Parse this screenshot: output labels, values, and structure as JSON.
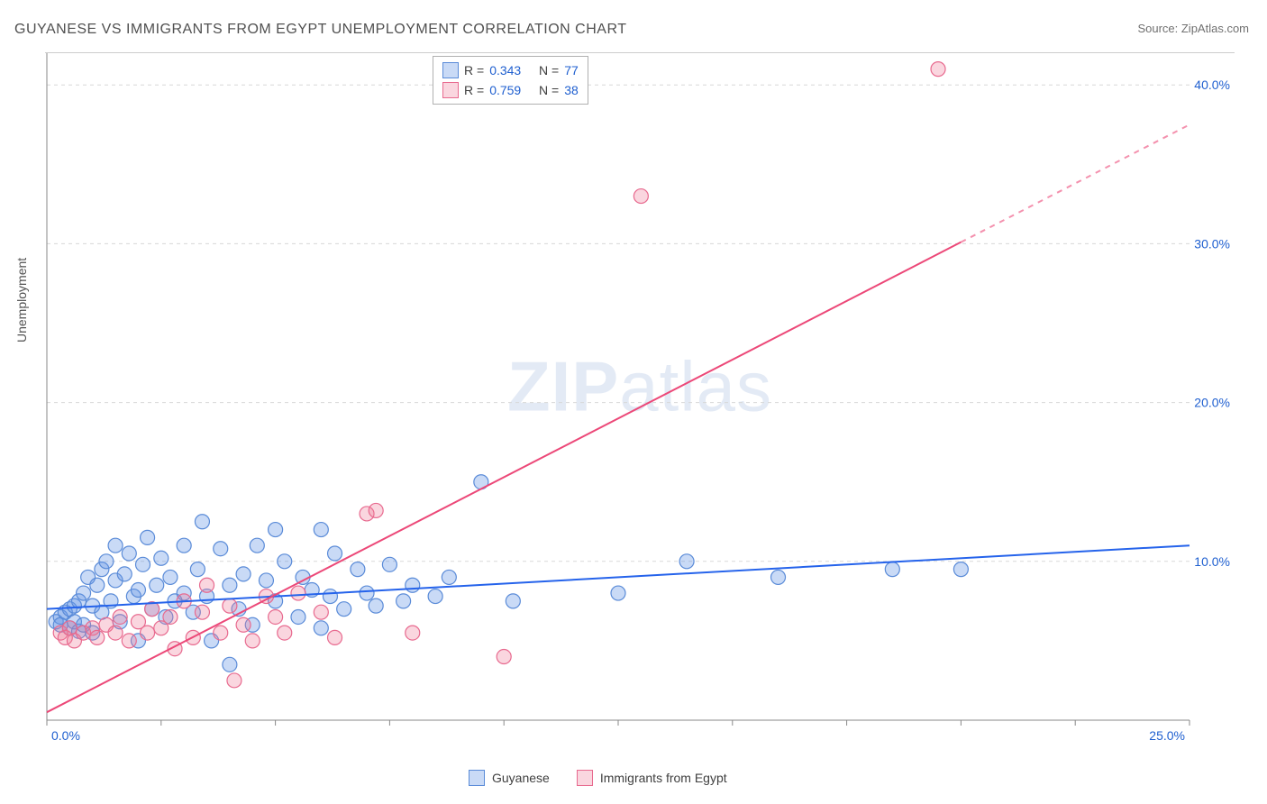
{
  "title": "GUYANESE VS IMMIGRANTS FROM EGYPT UNEMPLOYMENT CORRELATION CHART",
  "source": "Source: ZipAtlas.com",
  "y_axis_label": "Unemployment",
  "watermark_a": "ZIP",
  "watermark_b": "atlas",
  "chart": {
    "type": "scatter",
    "xlim": [
      0,
      25
    ],
    "ylim": [
      0,
      42
    ],
    "x_ticks": [
      0,
      25
    ],
    "x_tick_labels": [
      "0.0%",
      "25.0%"
    ],
    "y_ticks": [
      10,
      20,
      30,
      40
    ],
    "y_tick_labels": [
      "10.0%",
      "20.0%",
      "30.0%",
      "40.0%"
    ],
    "grid_color": "#d8d8d8",
    "axis_line_color": "#888888",
    "tick_label_color": "#2060d0",
    "background_color": "#ffffff",
    "x_minor_tick_step": 2.5,
    "series": [
      {
        "name": "Guyanese",
        "label": "Guyanese",
        "color_fill": "rgba(100,150,230,0.35)",
        "color_stroke": "#5a8bd8",
        "marker_radius": 8,
        "R": 0.343,
        "N": 77,
        "trend": {
          "x1": 0,
          "y1": 7.0,
          "x2": 25,
          "y2": 11.0,
          "color": "#2563eb",
          "width": 2
        },
        "points": [
          [
            0.2,
            6.2
          ],
          [
            0.3,
            6.5
          ],
          [
            0.3,
            6.0
          ],
          [
            0.4,
            6.8
          ],
          [
            0.5,
            7.0
          ],
          [
            0.5,
            5.8
          ],
          [
            0.6,
            6.2
          ],
          [
            0.6,
            7.2
          ],
          [
            0.7,
            5.6
          ],
          [
            0.7,
            7.5
          ],
          [
            0.8,
            6.0
          ],
          [
            0.8,
            8.0
          ],
          [
            0.9,
            9.0
          ],
          [
            1.0,
            7.2
          ],
          [
            1.0,
            5.5
          ],
          [
            1.1,
            8.5
          ],
          [
            1.2,
            9.5
          ],
          [
            1.2,
            6.8
          ],
          [
            1.3,
            10.0
          ],
          [
            1.4,
            7.5
          ],
          [
            1.5,
            8.8
          ],
          [
            1.5,
            11.0
          ],
          [
            1.6,
            6.2
          ],
          [
            1.7,
            9.2
          ],
          [
            1.8,
            10.5
          ],
          [
            1.9,
            7.8
          ],
          [
            2.0,
            8.2
          ],
          [
            2.0,
            5.0
          ],
          [
            2.1,
            9.8
          ],
          [
            2.2,
            11.5
          ],
          [
            2.3,
            7.0
          ],
          [
            2.4,
            8.5
          ],
          [
            2.5,
            10.2
          ],
          [
            2.6,
            6.5
          ],
          [
            2.7,
            9.0
          ],
          [
            2.8,
            7.5
          ],
          [
            3.0,
            8.0
          ],
          [
            3.0,
            11.0
          ],
          [
            3.2,
            6.8
          ],
          [
            3.3,
            9.5
          ],
          [
            3.4,
            12.5
          ],
          [
            3.5,
            7.8
          ],
          [
            3.6,
            5.0
          ],
          [
            3.8,
            10.8
          ],
          [
            4.0,
            8.5
          ],
          [
            4.2,
            7.0
          ],
          [
            4.3,
            9.2
          ],
          [
            4.5,
            6.0
          ],
          [
            4.6,
            11.0
          ],
          [
            4.8,
            8.8
          ],
          [
            5.0,
            7.5
          ],
          [
            5.2,
            10.0
          ],
          [
            5.5,
            6.5
          ],
          [
            5.6,
            9.0
          ],
          [
            5.8,
            8.2
          ],
          [
            6.0,
            12.0
          ],
          [
            6.2,
            7.8
          ],
          [
            6.3,
            10.5
          ],
          [
            6.5,
            7.0
          ],
          [
            6.8,
            9.5
          ],
          [
            7.0,
            8.0
          ],
          [
            7.2,
            7.2
          ],
          [
            7.5,
            9.8
          ],
          [
            7.8,
            7.5
          ],
          [
            8.0,
            8.5
          ],
          [
            8.5,
            7.8
          ],
          [
            8.8,
            9.0
          ],
          [
            9.5,
            15.0
          ],
          [
            10.2,
            7.5
          ],
          [
            12.5,
            8.0
          ],
          [
            14.0,
            10.0
          ],
          [
            16.0,
            9.0
          ],
          [
            18.5,
            9.5
          ],
          [
            20.0,
            9.5
          ],
          [
            5.0,
            12.0
          ],
          [
            4.0,
            3.5
          ],
          [
            6.0,
            5.8
          ]
        ]
      },
      {
        "name": "Immigrants from Egypt",
        "label": "Immigrants from Egypt",
        "color_fill": "rgba(240,120,150,0.30)",
        "color_stroke": "#e86a8f",
        "marker_radius": 8,
        "R": 0.759,
        "N": 38,
        "trend": {
          "x1": 0,
          "y1": 0.5,
          "x2": 25,
          "y2": 37.5,
          "color": "#ec4878",
          "width": 2,
          "dash_after_x": 20
        },
        "points": [
          [
            0.3,
            5.5
          ],
          [
            0.4,
            5.2
          ],
          [
            0.5,
            5.8
          ],
          [
            0.6,
            5.0
          ],
          [
            0.8,
            5.5
          ],
          [
            1.0,
            5.8
          ],
          [
            1.1,
            5.2
          ],
          [
            1.3,
            6.0
          ],
          [
            1.5,
            5.5
          ],
          [
            1.6,
            6.5
          ],
          [
            1.8,
            5.0
          ],
          [
            2.0,
            6.2
          ],
          [
            2.2,
            5.5
          ],
          [
            2.3,
            7.0
          ],
          [
            2.5,
            5.8
          ],
          [
            2.7,
            6.5
          ],
          [
            2.8,
            4.5
          ],
          [
            3.0,
            7.5
          ],
          [
            3.2,
            5.2
          ],
          [
            3.4,
            6.8
          ],
          [
            3.5,
            8.5
          ],
          [
            3.8,
            5.5
          ],
          [
            4.0,
            7.2
          ],
          [
            4.1,
            2.5
          ],
          [
            4.3,
            6.0
          ],
          [
            4.5,
            5.0
          ],
          [
            4.8,
            7.8
          ],
          [
            5.0,
            6.5
          ],
          [
            5.2,
            5.5
          ],
          [
            5.5,
            8.0
          ],
          [
            6.0,
            6.8
          ],
          [
            6.3,
            5.2
          ],
          [
            7.0,
            13.0
          ],
          [
            7.2,
            13.2
          ],
          [
            8.0,
            5.5
          ],
          [
            10.0,
            4.0
          ],
          [
            13.0,
            33.0
          ],
          [
            19.5,
            41.0
          ]
        ]
      }
    ]
  },
  "legend_top": {
    "r_label": "R = ",
    "n_label": "N = "
  },
  "legend_bottom": {
    "items": [
      "Guyanese",
      "Immigrants from Egypt"
    ]
  }
}
